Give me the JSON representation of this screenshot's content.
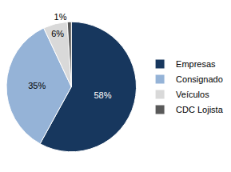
{
  "chart_data": {
    "type": "pie",
    "categories": [
      "Empresas",
      "Consignado",
      "Veículos",
      "CDC Lojista"
    ],
    "values": [
      58,
      35,
      6,
      1
    ],
    "value_labels": [
      "58%",
      "35%",
      "6%",
      "1%"
    ],
    "colors": [
      "#17375e",
      "#95b3d7",
      "#d9d9d9",
      "#595959"
    ],
    "data_labels": true,
    "legend": "right"
  }
}
